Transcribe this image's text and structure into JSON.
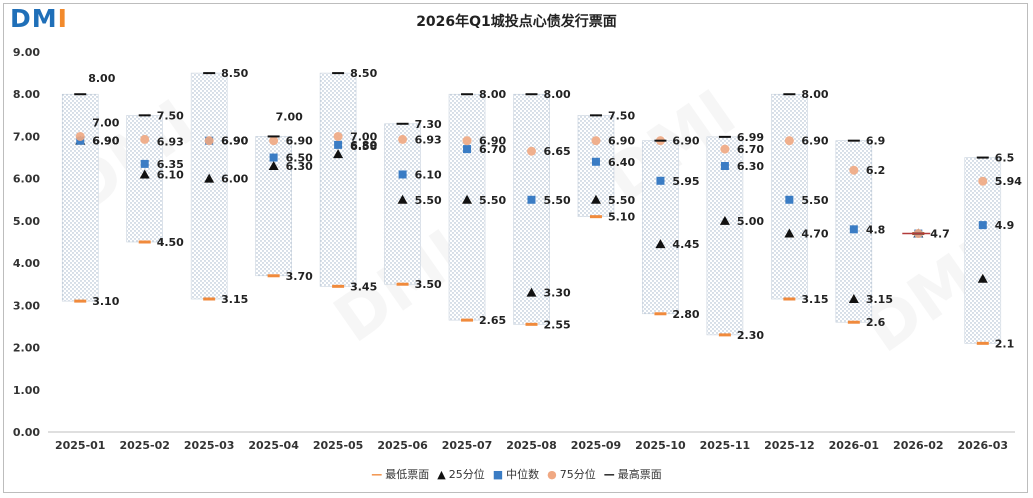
{
  "logo": {
    "text_a": "DM",
    "text_b": "I"
  },
  "chart_data": {
    "type": "box-range",
    "title": "2026年Q1城投点心债发行票面",
    "xlabel": "",
    "ylabel": "",
    "ylim": [
      0,
      9
    ],
    "yticks": [
      "0.00",
      "1.00",
      "2.00",
      "3.00",
      "4.00",
      "5.00",
      "6.00",
      "7.00",
      "8.00",
      "9.00"
    ],
    "categories": [
      "2025-01",
      "2025-02",
      "2025-03",
      "2025-04",
      "2025-05",
      "2025-06",
      "2025-07",
      "2025-08",
      "2025-09",
      "2025-10",
      "2025-11",
      "2025-12",
      "2026-01",
      "2026-02",
      "2026-03"
    ],
    "series": [
      {
        "name": "最低票面",
        "color": "#f08a3c",
        "values": [
          3.1,
          4.5,
          3.15,
          3.7,
          3.45,
          3.5,
          2.65,
          2.55,
          5.1,
          2.8,
          2.3,
          3.15,
          2.6,
          4.7,
          2.1
        ],
        "labels": [
          "3.10",
          "4.50",
          "3.15",
          "3.70",
          "3.45",
          "3.50",
          "2.65",
          "2.55",
          "5.10",
          "2.80",
          "2.30",
          "3.15",
          "2.6",
          "4.7",
          "2.1"
        ]
      },
      {
        "name": "25分位",
        "color": "#111111",
        "values": [
          6.9,
          6.1,
          6.0,
          6.3,
          6.58,
          5.5,
          5.5,
          3.3,
          5.5,
          4.45,
          5.0,
          4.7,
          3.15,
          4.7,
          3.63
        ],
        "labels": [
          "6.90",
          "6.10",
          "6.00",
          "6.30",
          "6.58",
          "5.50",
          "5.50",
          "3.30",
          "5.50",
          "4.45",
          "5.00",
          "4.70",
          "3.15",
          "",
          ""
        ]
      },
      {
        "name": "中位数",
        "color": "#3a7cc4",
        "values": [
          6.9,
          6.35,
          6.9,
          6.5,
          6.8,
          6.1,
          6.7,
          5.5,
          6.4,
          5.95,
          6.3,
          5.5,
          4.8,
          4.7,
          4.9
        ],
        "labels": [
          "6.90",
          "6.35",
          "6.90",
          "6.50",
          "6.80",
          "6.10",
          "6.70",
          "5.50",
          "6.40",
          "5.95",
          "6.30",
          "5.50",
          "4.8",
          "",
          "4.9"
        ]
      },
      {
        "name": "75分位",
        "color": "#f0a882",
        "values": [
          7.0,
          6.93,
          6.9,
          6.9,
          7.0,
          6.93,
          6.9,
          6.65,
          6.9,
          6.9,
          6.7,
          6.9,
          6.2,
          4.7,
          5.94
        ],
        "labels": [
          "7.00",
          "6.93",
          "6.90",
          "6.90",
          "7.00",
          "6.93",
          "6.90",
          "6.65",
          "6.90",
          "6.90",
          "6.70",
          "6.90",
          "6.2",
          "",
          "5.94"
        ]
      },
      {
        "name": "最高票面",
        "color": "#111111",
        "values": [
          8.0,
          7.5,
          8.5,
          7.0,
          8.5,
          7.3,
          8.0,
          8.0,
          7.5,
          6.9,
          6.99,
          8.0,
          6.9,
          4.7,
          6.5
        ],
        "labels": [
          "8.00",
          "7.50",
          "8.50",
          "7.00",
          "8.50",
          "7.30",
          "8.00",
          "8.00",
          "7.50",
          "",
          "6.99",
          "8.00",
          "6.9",
          "",
          "6.5"
        ]
      }
    ],
    "legend": {
      "placement": "bottom-center",
      "entries": [
        "最低票面",
        "25分位",
        "中位数",
        "75分位",
        "最高票面"
      ],
      "symbols": [
        "—",
        "▲",
        "■",
        "●",
        "—"
      ]
    }
  }
}
